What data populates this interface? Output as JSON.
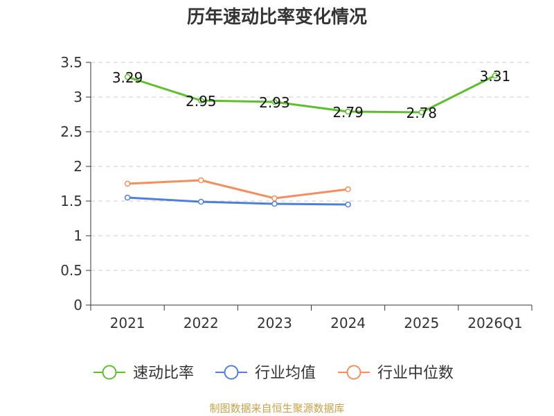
{
  "chart_data": {
    "type": "line",
    "title": "历年速动比率变化情况",
    "categories": [
      "2021",
      "2022",
      "2023",
      "2024",
      "2025",
      "2026Q1"
    ],
    "ylim": [
      0,
      3.5
    ],
    "yticks": [
      "0",
      "0.5",
      "1",
      "1.5",
      "2",
      "2.5",
      "3",
      "3.5"
    ],
    "grid": true,
    "legend_position": "bottom",
    "series": [
      {
        "name": "速动比率",
        "color": "#5cc02c",
        "values": [
          3.29,
          2.95,
          2.93,
          2.79,
          2.78,
          3.31
        ],
        "labels": [
          "3.29",
          "2.95",
          "2.93",
          "2.79",
          "2.78",
          "3.31"
        ]
      },
      {
        "name": "行业均值",
        "color": "#4f7fdb",
        "values": [
          1.55,
          1.49,
          1.46,
          1.45,
          null,
          null
        ]
      },
      {
        "name": "行业中位数",
        "color": "#f58d5c",
        "values": [
          1.75,
          1.8,
          1.54,
          1.67,
          null,
          null
        ]
      }
    ]
  },
  "footer": {
    "source": "制图数据来自恒生聚源数据库"
  }
}
